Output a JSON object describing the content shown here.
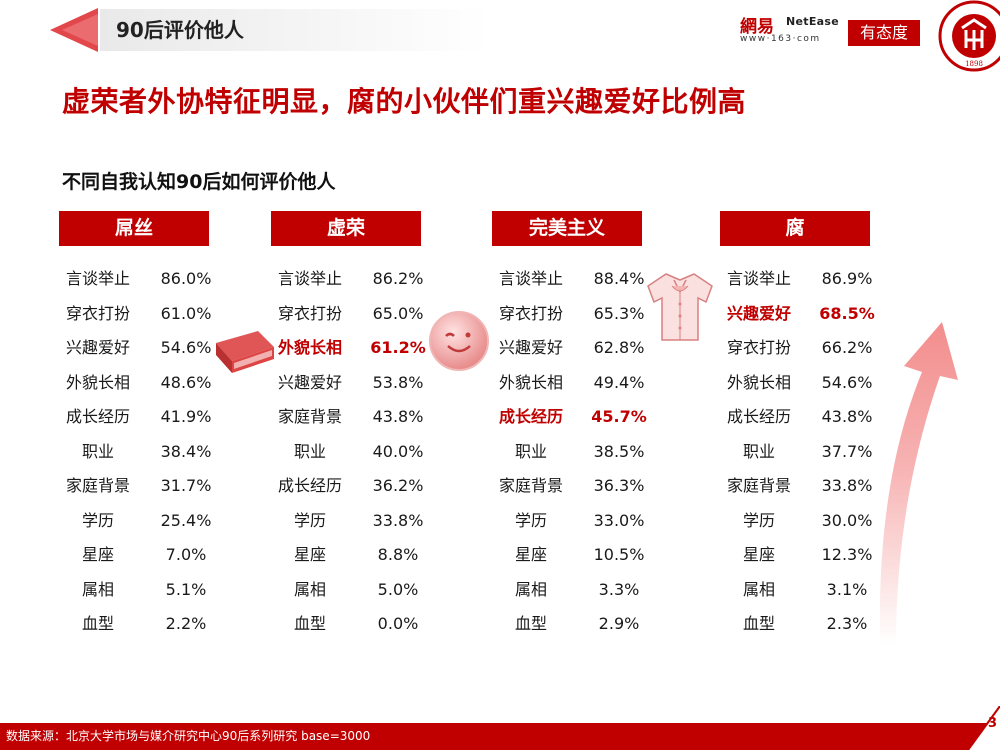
{
  "header": {
    "section_label": "90后评价他人",
    "logo_netease_cn": "網易",
    "logo_netease_en": "NetEase",
    "logo_netease_url": "www·163·com",
    "logo_youtaidu": "有态度",
    "seal_text": "PEKING UNIVERSITY",
    "seal_year": "1898"
  },
  "main_title": "虚荣者外协特征明显，腐的小伙伴们重兴趣爱好比例高",
  "sub_title": "不同自我认知90后如何评价他人",
  "columns": [
    {
      "header": "屌丝",
      "rows": [
        {
          "label": "言谈举止",
          "value": "86.0%",
          "highlight": false
        },
        {
          "label": "穿衣打扮",
          "value": "61.0%",
          "highlight": false
        },
        {
          "label": "兴趣爱好",
          "value": "54.6%",
          "highlight": false
        },
        {
          "label": "外貌长相",
          "value": "48.6%",
          "highlight": false
        },
        {
          "label": "成长经历",
          "value": "41.9%",
          "highlight": false
        },
        {
          "label": "职业",
          "value": "38.4%",
          "highlight": false
        },
        {
          "label": "家庭背景",
          "value": "31.7%",
          "highlight": false
        },
        {
          "label": "学历",
          "value": "25.4%",
          "highlight": false
        },
        {
          "label": "星座",
          "value": "7.0%",
          "highlight": false
        },
        {
          "label": "属相",
          "value": "5.1%",
          "highlight": false
        },
        {
          "label": "血型",
          "value": "2.2%",
          "highlight": false
        }
      ]
    },
    {
      "header": "虚荣",
      "rows": [
        {
          "label": "言谈举止",
          "value": "86.2%",
          "highlight": false
        },
        {
          "label": "穿衣打扮",
          "value": "65.0%",
          "highlight": false
        },
        {
          "label": "外貌长相",
          "value": "61.2%",
          "highlight": true
        },
        {
          "label": "兴趣爱好",
          "value": "53.8%",
          "highlight": false
        },
        {
          "label": "家庭背景",
          "value": "43.8%",
          "highlight": false
        },
        {
          "label": "职业",
          "value": "40.0%",
          "highlight": false
        },
        {
          "label": "成长经历",
          "value": "36.2%",
          "highlight": false
        },
        {
          "label": "学历",
          "value": "33.8%",
          "highlight": false
        },
        {
          "label": "星座",
          "value": "8.8%",
          "highlight": false
        },
        {
          "label": "属相",
          "value": "5.0%",
          "highlight": false
        },
        {
          "label": "血型",
          "value": "0.0%",
          "highlight": false
        }
      ]
    },
    {
      "header": "完美主义",
      "rows": [
        {
          "label": "言谈举止",
          "value": "88.4%",
          "highlight": false
        },
        {
          "label": "穿衣打扮",
          "value": "65.3%",
          "highlight": false
        },
        {
          "label": "兴趣爱好",
          "value": "62.8%",
          "highlight": false
        },
        {
          "label": "外貌长相",
          "value": "49.4%",
          "highlight": false
        },
        {
          "label": "成长经历",
          "value": "45.7%",
          "highlight": true
        },
        {
          "label": "职业",
          "value": "38.5%",
          "highlight": false
        },
        {
          "label": "家庭背景",
          "value": "36.3%",
          "highlight": false
        },
        {
          "label": "学历",
          "value": "33.0%",
          "highlight": false
        },
        {
          "label": "星座",
          "value": "10.5%",
          "highlight": false
        },
        {
          "label": "属相",
          "value": "3.3%",
          "highlight": false
        },
        {
          "label": "血型",
          "value": "2.9%",
          "highlight": false
        }
      ]
    },
    {
      "header": "腐",
      "rows": [
        {
          "label": "言谈举止",
          "value": "86.9%",
          "highlight": false
        },
        {
          "label": "兴趣爱好",
          "value": "68.5%",
          "highlight": true
        },
        {
          "label": "穿衣打扮",
          "value": "66.2%",
          "highlight": false
        },
        {
          "label": "外貌长相",
          "value": "54.6%",
          "highlight": false
        },
        {
          "label": "成长经历",
          "value": "43.8%",
          "highlight": false
        },
        {
          "label": "职业",
          "value": "37.7%",
          "highlight": false
        },
        {
          "label": "家庭背景",
          "value": "33.8%",
          "highlight": false
        },
        {
          "label": "学历",
          "value": "30.0%",
          "highlight": false
        },
        {
          "label": "星座",
          "value": "12.3%",
          "highlight": false
        },
        {
          "label": "属相",
          "value": "3.1%",
          "highlight": false
        },
        {
          "label": "血型",
          "value": "2.3%",
          "highlight": false
        }
      ]
    }
  ],
  "decorations": [
    "book-icon",
    "smiley-icon",
    "shirt-icon",
    "up-arrow-icon"
  ],
  "footer": {
    "source": "数据来源：北京大学市场与媒介研究中心90后系列研究 base=3000",
    "page_number": "3"
  },
  "colors": {
    "accent": "#c00000",
    "highlight_text": "#c00000",
    "arrow": "#f5a0a0"
  }
}
